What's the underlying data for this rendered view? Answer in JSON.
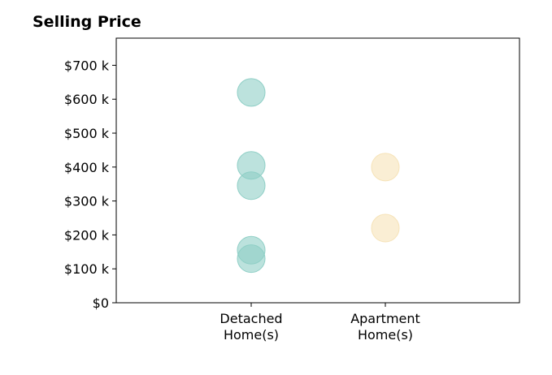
{
  "chart_data": {
    "type": "scatter",
    "title": "Selling Price",
    "xlabel": "",
    "ylabel": "",
    "ylim": [
      0,
      780
    ],
    "y_ticks": [
      0,
      100,
      200,
      300,
      400,
      500,
      600,
      700
    ],
    "y_tick_labels": [
      "$0",
      "$100 k",
      "$200 k",
      "$300 k",
      "$400 k",
      "$500 k",
      "$600 k",
      "$700 k"
    ],
    "categories": [
      [
        "Detached",
        "Home(s)"
      ],
      [
        "Apartment",
        "Home(s)"
      ]
    ],
    "grid": false,
    "series": [
      {
        "category_index": 0,
        "color": "#8fcfc6",
        "values": [
          620,
          405,
          345,
          155,
          130
        ]
      },
      {
        "category_index": 1,
        "color": "#f6e3b8",
        "values": [
          400,
          220
        ]
      }
    ]
  }
}
